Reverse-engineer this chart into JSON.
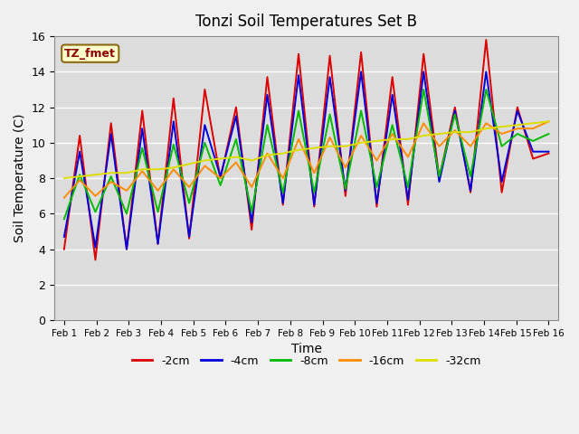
{
  "title": "Tonzi Soil Temperatures Set B",
  "xlabel": "Time",
  "ylabel": "Soil Temperature (C)",
  "ylim": [
    0,
    16
  ],
  "yticks": [
    0,
    2,
    4,
    6,
    8,
    10,
    12,
    14,
    16
  ],
  "annotation_text": "TZ_fmet",
  "annotation_color": "#8B0000",
  "annotation_bg": "#FFFFCC",
  "annotation_border": "#8B6914",
  "x_labels": [
    "Feb 1",
    "Feb 2",
    "Feb 3",
    "Feb 4",
    "Feb 5",
    "Feb 6",
    "Feb 7",
    "Feb 8",
    "Feb 9",
    "Feb 10",
    "Feb 11",
    "Feb 12",
    "Feb 13",
    "Feb 14",
    "Feb 15",
    "Feb 16"
  ],
  "series": {
    "-2cm": {
      "color": "#DD0000",
      "linewidth": 1.4,
      "data": [
        4.0,
        10.4,
        3.4,
        11.1,
        4.0,
        11.8,
        4.3,
        12.5,
        4.6,
        13.0,
        8.0,
        12.0,
        5.1,
        13.7,
        6.5,
        15.0,
        6.4,
        14.9,
        7.0,
        15.1,
        6.4,
        13.7,
        6.5,
        15.0,
        8.0,
        12.0,
        7.2,
        15.8,
        7.2,
        12.0,
        9.1,
        9.4
      ]
    },
    "-4cm": {
      "color": "#0000DD",
      "linewidth": 1.4,
      "data": [
        4.7,
        9.5,
        4.1,
        10.5,
        4.0,
        10.8,
        4.3,
        11.2,
        4.7,
        11.0,
        8.1,
        11.5,
        5.5,
        12.7,
        6.6,
        13.8,
        6.5,
        13.7,
        7.3,
        14.0,
        6.6,
        12.7,
        6.8,
        14.0,
        7.8,
        11.8,
        7.3,
        14.0,
        7.8,
        11.8,
        9.5,
        9.5
      ]
    },
    "-8cm": {
      "color": "#00BB00",
      "linewidth": 1.4,
      "data": [
        5.7,
        8.2,
        6.1,
        8.1,
        6.0,
        9.7,
        6.1,
        9.9,
        6.6,
        10.0,
        7.6,
        10.2,
        6.1,
        11.0,
        7.2,
        11.8,
        7.2,
        11.6,
        7.4,
        11.8,
        7.5,
        11.0,
        7.5,
        13.0,
        8.1,
        11.6,
        8.1,
        13.0,
        9.8,
        10.5,
        10.1,
        10.5
      ]
    },
    "-16cm": {
      "color": "#FF8C00",
      "linewidth": 1.4,
      "data": [
        6.9,
        7.9,
        7.0,
        7.8,
        7.3,
        8.4,
        7.3,
        8.5,
        7.5,
        8.7,
        8.0,
        8.9,
        7.5,
        9.4,
        8.0,
        10.2,
        8.3,
        10.3,
        8.6,
        10.4,
        9.0,
        10.5,
        9.2,
        11.1,
        9.8,
        10.7,
        9.8,
        11.1,
        10.5,
        10.8,
        10.8,
        11.2
      ]
    },
    "-32cm": {
      "color": "#DDDD00",
      "linewidth": 1.4,
      "data": [
        8.0,
        8.1,
        8.2,
        8.3,
        8.3,
        8.5,
        8.5,
        8.6,
        8.8,
        9.0,
        9.1,
        9.2,
        9.0,
        9.3,
        9.4,
        9.6,
        9.7,
        9.8,
        9.8,
        10.0,
        10.1,
        10.2,
        10.2,
        10.4,
        10.5,
        10.6,
        10.6,
        10.8,
        10.9,
        11.0,
        11.1,
        11.2
      ]
    }
  },
  "legend_entries": [
    "-2cm",
    "-4cm",
    "-8cm",
    "-16cm",
    "-32cm"
  ],
  "legend_colors": [
    "#DD0000",
    "#0000DD",
    "#00BB00",
    "#FF8C00",
    "#DDDD00"
  ],
  "background_color": "#DCDCDC",
  "plot_bg": "#DCDCDC",
  "fig_bg": "#F0F0F0"
}
